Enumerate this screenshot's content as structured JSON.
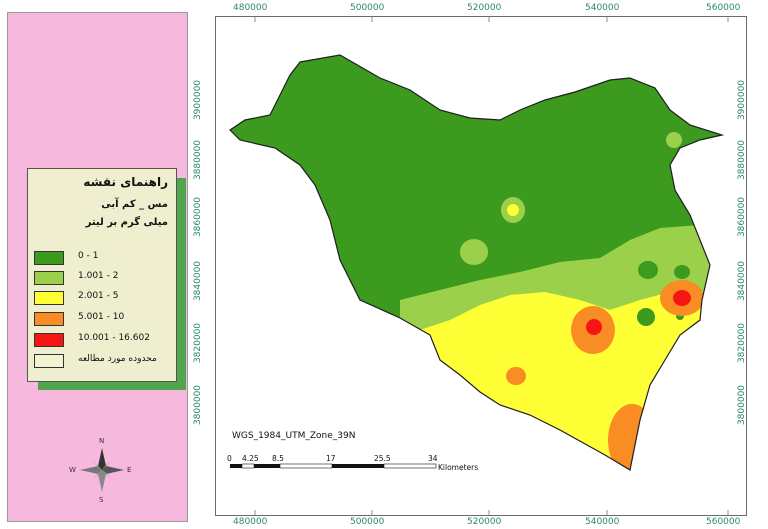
{
  "legend": {
    "title": "راهنمای نقشه",
    "subtitle_1": "مس _ کم آبی",
    "subtitle_2": "میلی گرم بر لیتر",
    "items": [
      {
        "label": "0 - 1",
        "color": "#3c9a1f"
      },
      {
        "label": "1.001 - 2",
        "color": "#9bd14a"
      },
      {
        "label": "2.001 - 5",
        "color": "#ffff35"
      },
      {
        "label": "5.001 - 10",
        "color": "#f98c22"
      },
      {
        "label": "10.001 - 16.602",
        "color": "#f51515"
      },
      {
        "label": "محدوده مورد مطالعه",
        "color": "#f3f3d2"
      }
    ]
  },
  "axes": {
    "x_top": [
      "480000",
      "500000",
      "520000",
      "540000",
      "560000"
    ],
    "x_bottom": [
      "480000",
      "500000",
      "520000",
      "540000",
      "560000"
    ],
    "y_left": [
      "3900000",
      "3880000",
      "3860000",
      "3840000",
      "3820000",
      "3800000"
    ],
    "y_right": [
      "3900000",
      "3880000",
      "3860000",
      "3840000",
      "3820000",
      "3800000"
    ]
  },
  "projection": "WGS_1984_UTM_Zone_39N",
  "scalebar": {
    "ticks": [
      "0",
      "4.25",
      "8.5",
      "17",
      "25.5",
      "34"
    ],
    "unit": "Kilometers"
  },
  "north_arrow": {
    "north": "N",
    "south": "S",
    "east": "E",
    "west": "W"
  },
  "colors": {
    "green": "#3c9a1f",
    "light_green": "#9bd14a",
    "yellow": "#ffff35",
    "orange": "#f98c22",
    "red": "#f51515",
    "background_panel": "#f6b8dd",
    "tick_color": "#2a8a6a"
  }
}
